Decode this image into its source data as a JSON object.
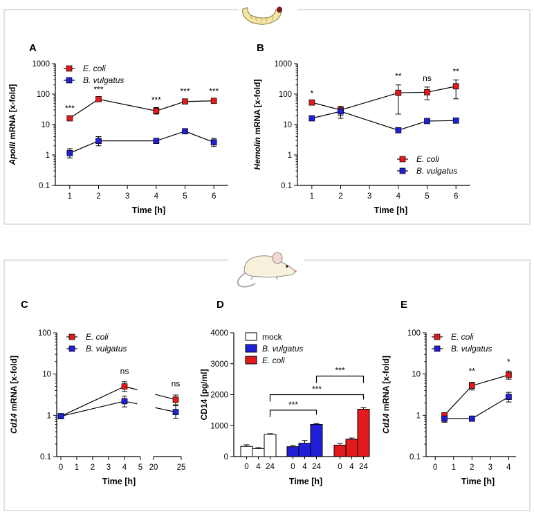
{
  "colors": {
    "ecoli": "#e31a1c",
    "bvulgatus": "#1f1fd6",
    "mock": "#ffffff"
  },
  "icons": {
    "top": "larva-icon",
    "bottom": "mouse-icon"
  },
  "chart_data": [
    {
      "id": "A",
      "type": "line",
      "panel_label": "A",
      "xlabel": "Time [h]",
      "ylabel_italic": "ApoIII",
      "ylabel_rest": " mRNA [x-fold]",
      "yscale": "log",
      "ylim": [
        0.1,
        1000
      ],
      "yticks": [
        "0.1",
        "1",
        "10",
        "100",
        "1000"
      ],
      "xticks": [
        "1",
        "2",
        "3",
        "4",
        "5",
        "6"
      ],
      "legend_position": "top-left",
      "series": [
        {
          "name": "E. coli",
          "color": "#e31a1c",
          "x": [
            1,
            2,
            4,
            5,
            6
          ],
          "values": [
            16,
            68,
            28,
            57,
            60
          ],
          "err_low": [
            15,
            62,
            22,
            50,
            55
          ],
          "err_high": [
            17,
            74,
            36,
            64,
            66
          ]
        },
        {
          "name": "B. vulgatus",
          "color": "#1f1fd6",
          "x": [
            1,
            2,
            4,
            5,
            6
          ],
          "values": [
            1.15,
            2.9,
            2.9,
            6.0,
            2.6
          ],
          "err_low": [
            0.8,
            2.0,
            2.5,
            5.4,
            1.9
          ],
          "err_high": [
            1.6,
            4.0,
            3.4,
            6.8,
            3.5
          ]
        }
      ],
      "annotations": [
        {
          "x": 1,
          "y": 28,
          "text": "***"
        },
        {
          "x": 2,
          "y": 115,
          "text": "***"
        },
        {
          "x": 4,
          "y": 52,
          "text": "***"
        },
        {
          "x": 5,
          "y": 100,
          "text": "***"
        },
        {
          "x": 6,
          "y": 100,
          "text": "***"
        }
      ]
    },
    {
      "id": "B",
      "type": "line",
      "panel_label": "B",
      "xlabel": "Time [h]",
      "ylabel_italic": "Hemolin",
      "ylabel_rest": " mRNA [x-fold]",
      "yscale": "log",
      "ylim": [
        0.1,
        1000
      ],
      "yticks": [
        "0.1",
        "1",
        "10",
        "100",
        "1000"
      ],
      "xticks": [
        "1",
        "2",
        "3",
        "4",
        "5",
        "6"
      ],
      "legend_position": "bottom-right",
      "series": [
        {
          "name": "E. coli",
          "color": "#e31a1c",
          "x": [
            1,
            2,
            4,
            5,
            6
          ],
          "values": [
            53,
            30,
            110,
            115,
            180
          ],
          "err_low": [
            45,
            20,
            22,
            65,
            70
          ],
          "err_high": [
            62,
            40,
            200,
            170,
            290
          ]
        },
        {
          "name": "B. vulgatus",
          "color": "#1f1fd6",
          "x": [
            1,
            2,
            4,
            5,
            6
          ],
          "values": [
            16,
            27,
            6.5,
            13,
            13.5
          ],
          "err_low": [
            15,
            16,
            6.0,
            12,
            12
          ],
          "err_high": [
            17,
            36,
            7.2,
            14,
            15
          ]
        }
      ],
      "annotations": [
        {
          "x": 1,
          "y": 85,
          "text": "*"
        },
        {
          "x": 4,
          "y": 320,
          "text": "**"
        },
        {
          "x": 5,
          "y": 270,
          "text": "ns"
        },
        {
          "x": 6,
          "y": 450,
          "text": "**"
        }
      ]
    },
    {
      "id": "C",
      "type": "line",
      "panel_label": "C",
      "xlabel": "Time [h]",
      "ylabel_italic": "Cd14",
      "ylabel_rest": " mRNA [x-fold]",
      "yscale": "log",
      "ylim": [
        0.1,
        100
      ],
      "yticks": [
        "0.1",
        "1",
        "10",
        "100"
      ],
      "xticks": [
        "0",
        "1",
        "2",
        "3",
        "4",
        "5",
        "20",
        "25"
      ],
      "x_break": [
        5,
        20
      ],
      "legend_position": "top-left",
      "series": [
        {
          "name": "E. coli",
          "color": "#e31a1c",
          "x": [
            0,
            4,
            24
          ],
          "values": [
            0.95,
            5.0,
            2.4
          ],
          "err_low": [
            0.88,
            3.8,
            1.8
          ],
          "err_high": [
            1.03,
            6.5,
            3.1
          ]
        },
        {
          "name": "B. vulgatus",
          "color": "#1f1fd6",
          "x": [
            0,
            4,
            24
          ],
          "values": [
            0.95,
            2.2,
            1.2
          ],
          "err_low": [
            0.88,
            1.6,
            0.85
          ],
          "err_high": [
            1.03,
            2.9,
            1.7
          ]
        }
      ],
      "annotations": [
        {
          "x": 4,
          "y": 10,
          "text": "ns"
        },
        {
          "x": 24,
          "y": 5,
          "text": "ns"
        }
      ]
    },
    {
      "id": "D",
      "type": "bar",
      "panel_label": "D",
      "xlabel": "Time [h]",
      "ylabel": "CD14 [pg/ml]",
      "ylim": [
        0,
        4000
      ],
      "yticks": [
        "0",
        "1000",
        "2000",
        "3000",
        "4000"
      ],
      "categories": [
        "0",
        "4",
        "24"
      ],
      "legend_position": "top-left",
      "series": [
        {
          "name": "mock",
          "color": "#ffffff",
          "values": [
            330,
            260,
            720
          ],
          "err": [
            50,
            30,
            20
          ]
        },
        {
          "name": "B. vulgatus",
          "color": "#1f1fd6",
          "values": [
            320,
            430,
            1040
          ],
          "err": [
            40,
            90,
            30
          ]
        },
        {
          "name": "E. coli",
          "color": "#e31a1c",
          "values": [
            370,
            560,
            1530
          ],
          "err": [
            50,
            40,
            50
          ]
        }
      ],
      "brackets": [
        {
          "from_group": 0,
          "to_group": 1,
          "y": 1500,
          "text": "***"
        },
        {
          "from_group": 0,
          "to_group": 2,
          "y": 2000,
          "text": "***"
        },
        {
          "from_group": 1,
          "to_group": 2,
          "y": 2600,
          "text": "***"
        }
      ]
    },
    {
      "id": "E",
      "type": "line",
      "panel_label": "E",
      "xlabel": "Time [h]",
      "ylabel_italic": "Cd14",
      "ylabel_rest": " mRNA [x-fold]",
      "yscale": "log",
      "ylim": [
        0.1,
        100
      ],
      "yticks": [
        "0.1",
        "1",
        "10",
        "100"
      ],
      "xticks": [
        "0",
        "1",
        "2",
        "3",
        "4"
      ],
      "legend_position": "top-left",
      "series": [
        {
          "name": "E. coli",
          "color": "#e31a1c",
          "x": [
            0.5,
            2,
            4
          ],
          "values": [
            1.0,
            5.2,
            9.5
          ],
          "err_low": [
            0.9,
            4.1,
            7.5
          ],
          "err_high": [
            1.1,
            6.3,
            11.8
          ]
        },
        {
          "name": "B. vulgatus",
          "color": "#1f1fd6",
          "x": [
            0.5,
            2,
            4
          ],
          "values": [
            0.83,
            0.83,
            2.8
          ],
          "err_low": [
            0.68,
            0.75,
            2.1
          ],
          "err_high": [
            0.98,
            0.91,
            3.6
          ]
        }
      ],
      "annotations": [
        {
          "x": 2,
          "y": 10,
          "text": "**"
        },
        {
          "x": 4,
          "y": 17,
          "text": "*"
        }
      ]
    }
  ]
}
